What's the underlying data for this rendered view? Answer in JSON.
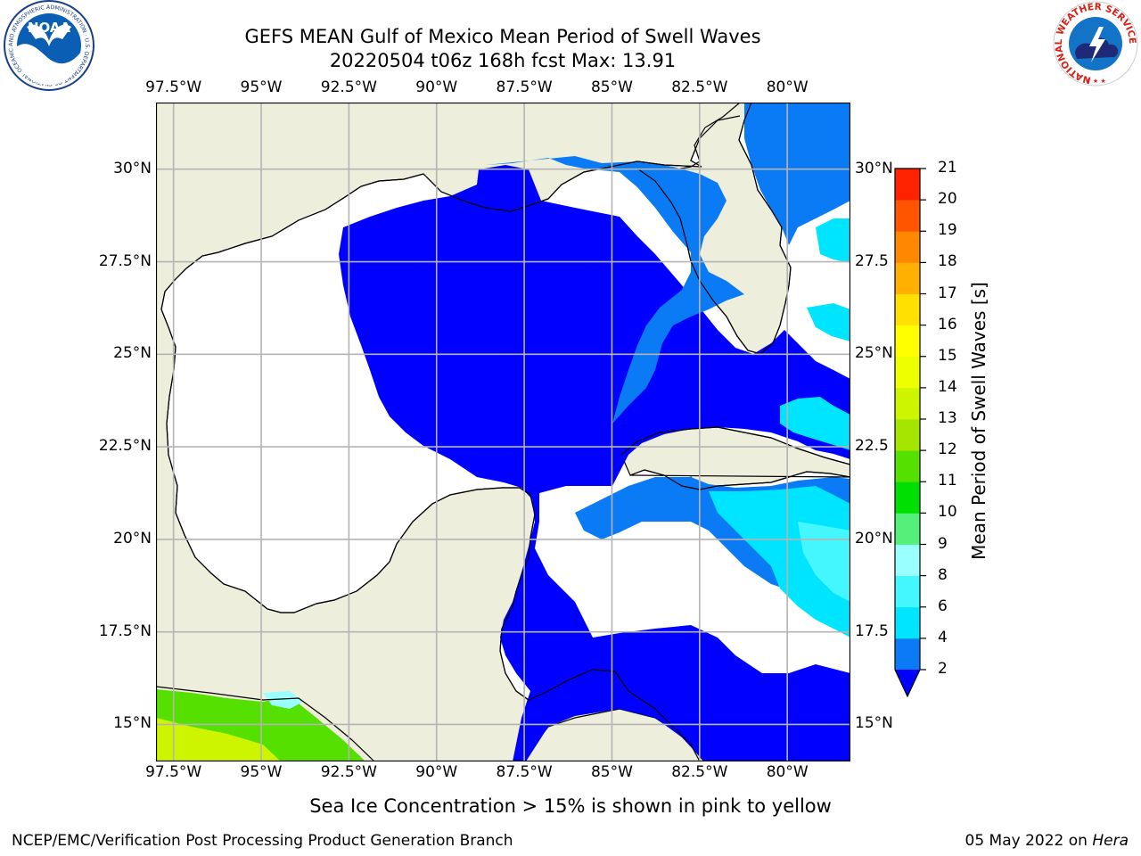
{
  "title": {
    "line1": "GEFS MEAN Gulf of Mexico Mean Period of Swell Waves",
    "line2": "20220504 t06z 168h fcst   Max: 13.91"
  },
  "map": {
    "lon_range": [
      -98,
      -78.2
    ],
    "lat_range": [
      14,
      31.8
    ],
    "colors": {
      "land": "#eeeedc",
      "coast": "#000000",
      "grid": "#b4b4b4"
    },
    "lon_ticks": [
      {
        "lon": -97.5,
        "label": "97.5°W"
      },
      {
        "lon": -95,
        "label": "95°W"
      },
      {
        "lon": -92.5,
        "label": "92.5°W"
      },
      {
        "lon": -90,
        "label": "90°W"
      },
      {
        "lon": -87.5,
        "label": "87.5°W"
      },
      {
        "lon": -85,
        "label": "85°W"
      },
      {
        "lon": -82.5,
        "label": "82.5°W"
      },
      {
        "lon": -80,
        "label": "80°W"
      }
    ],
    "lat_ticks_left": [
      {
        "lat": 30,
        "label": "30°N"
      },
      {
        "lat": 27.5,
        "label": "27.5°N"
      },
      {
        "lat": 25,
        "label": "25°N"
      },
      {
        "lat": 22.5,
        "label": "22.5°N"
      },
      {
        "lat": 20,
        "label": "20°N"
      },
      {
        "lat": 17.5,
        "label": "17.5°N"
      },
      {
        "lat": 15,
        "label": "15°N"
      }
    ],
    "lat_ticks_right": [
      {
        "lat": 30,
        "label": "30°N"
      },
      {
        "lat": 27.5,
        "label": "27.5"
      },
      {
        "lat": 25,
        "label": "25°N"
      },
      {
        "lat": 22.5,
        "label": "22.5"
      },
      {
        "lat": 20,
        "label": "20°N"
      },
      {
        "lat": 17.5,
        "label": "17.5"
      },
      {
        "lat": 15,
        "label": "15°N"
      }
    ]
  },
  "colorbar": {
    "label": "Mean Period of Swell Waves [s]",
    "levels": [
      2,
      4,
      6,
      8,
      9,
      10,
      11,
      12,
      13,
      14,
      15,
      16,
      17,
      18,
      19,
      20,
      21
    ],
    "colors": [
      "#0a7af5",
      "#00e5ff",
      "#44f7ff",
      "#99ffff",
      "#55f07a",
      "#00e000",
      "#55e000",
      "#a5e600",
      "#cdf500",
      "#eeff00",
      "#ffff00",
      "#ffe000",
      "#ffb000",
      "#ff8800",
      "#ff5500",
      "#ff2200"
    ],
    "under_color": "#0000ff"
  },
  "note": "Sea Ice Concentration > 15% is shown in pink to yellow",
  "footer": {
    "left": "NCEP/EMC/Verification Post Processing Product Generation Branch",
    "date": "05 May 2022 on ",
    "machine": "Hera"
  },
  "logos": {
    "noaa_text": "NOAA",
    "noaa_ring": "NATIONAL OCEANIC AND ATMOSPHERIC ADMINISTRATION · U.S. DEPARTMENT OF COMMERCE ·",
    "nws_ring": "NATIONAL WEATHER SERVICE"
  }
}
